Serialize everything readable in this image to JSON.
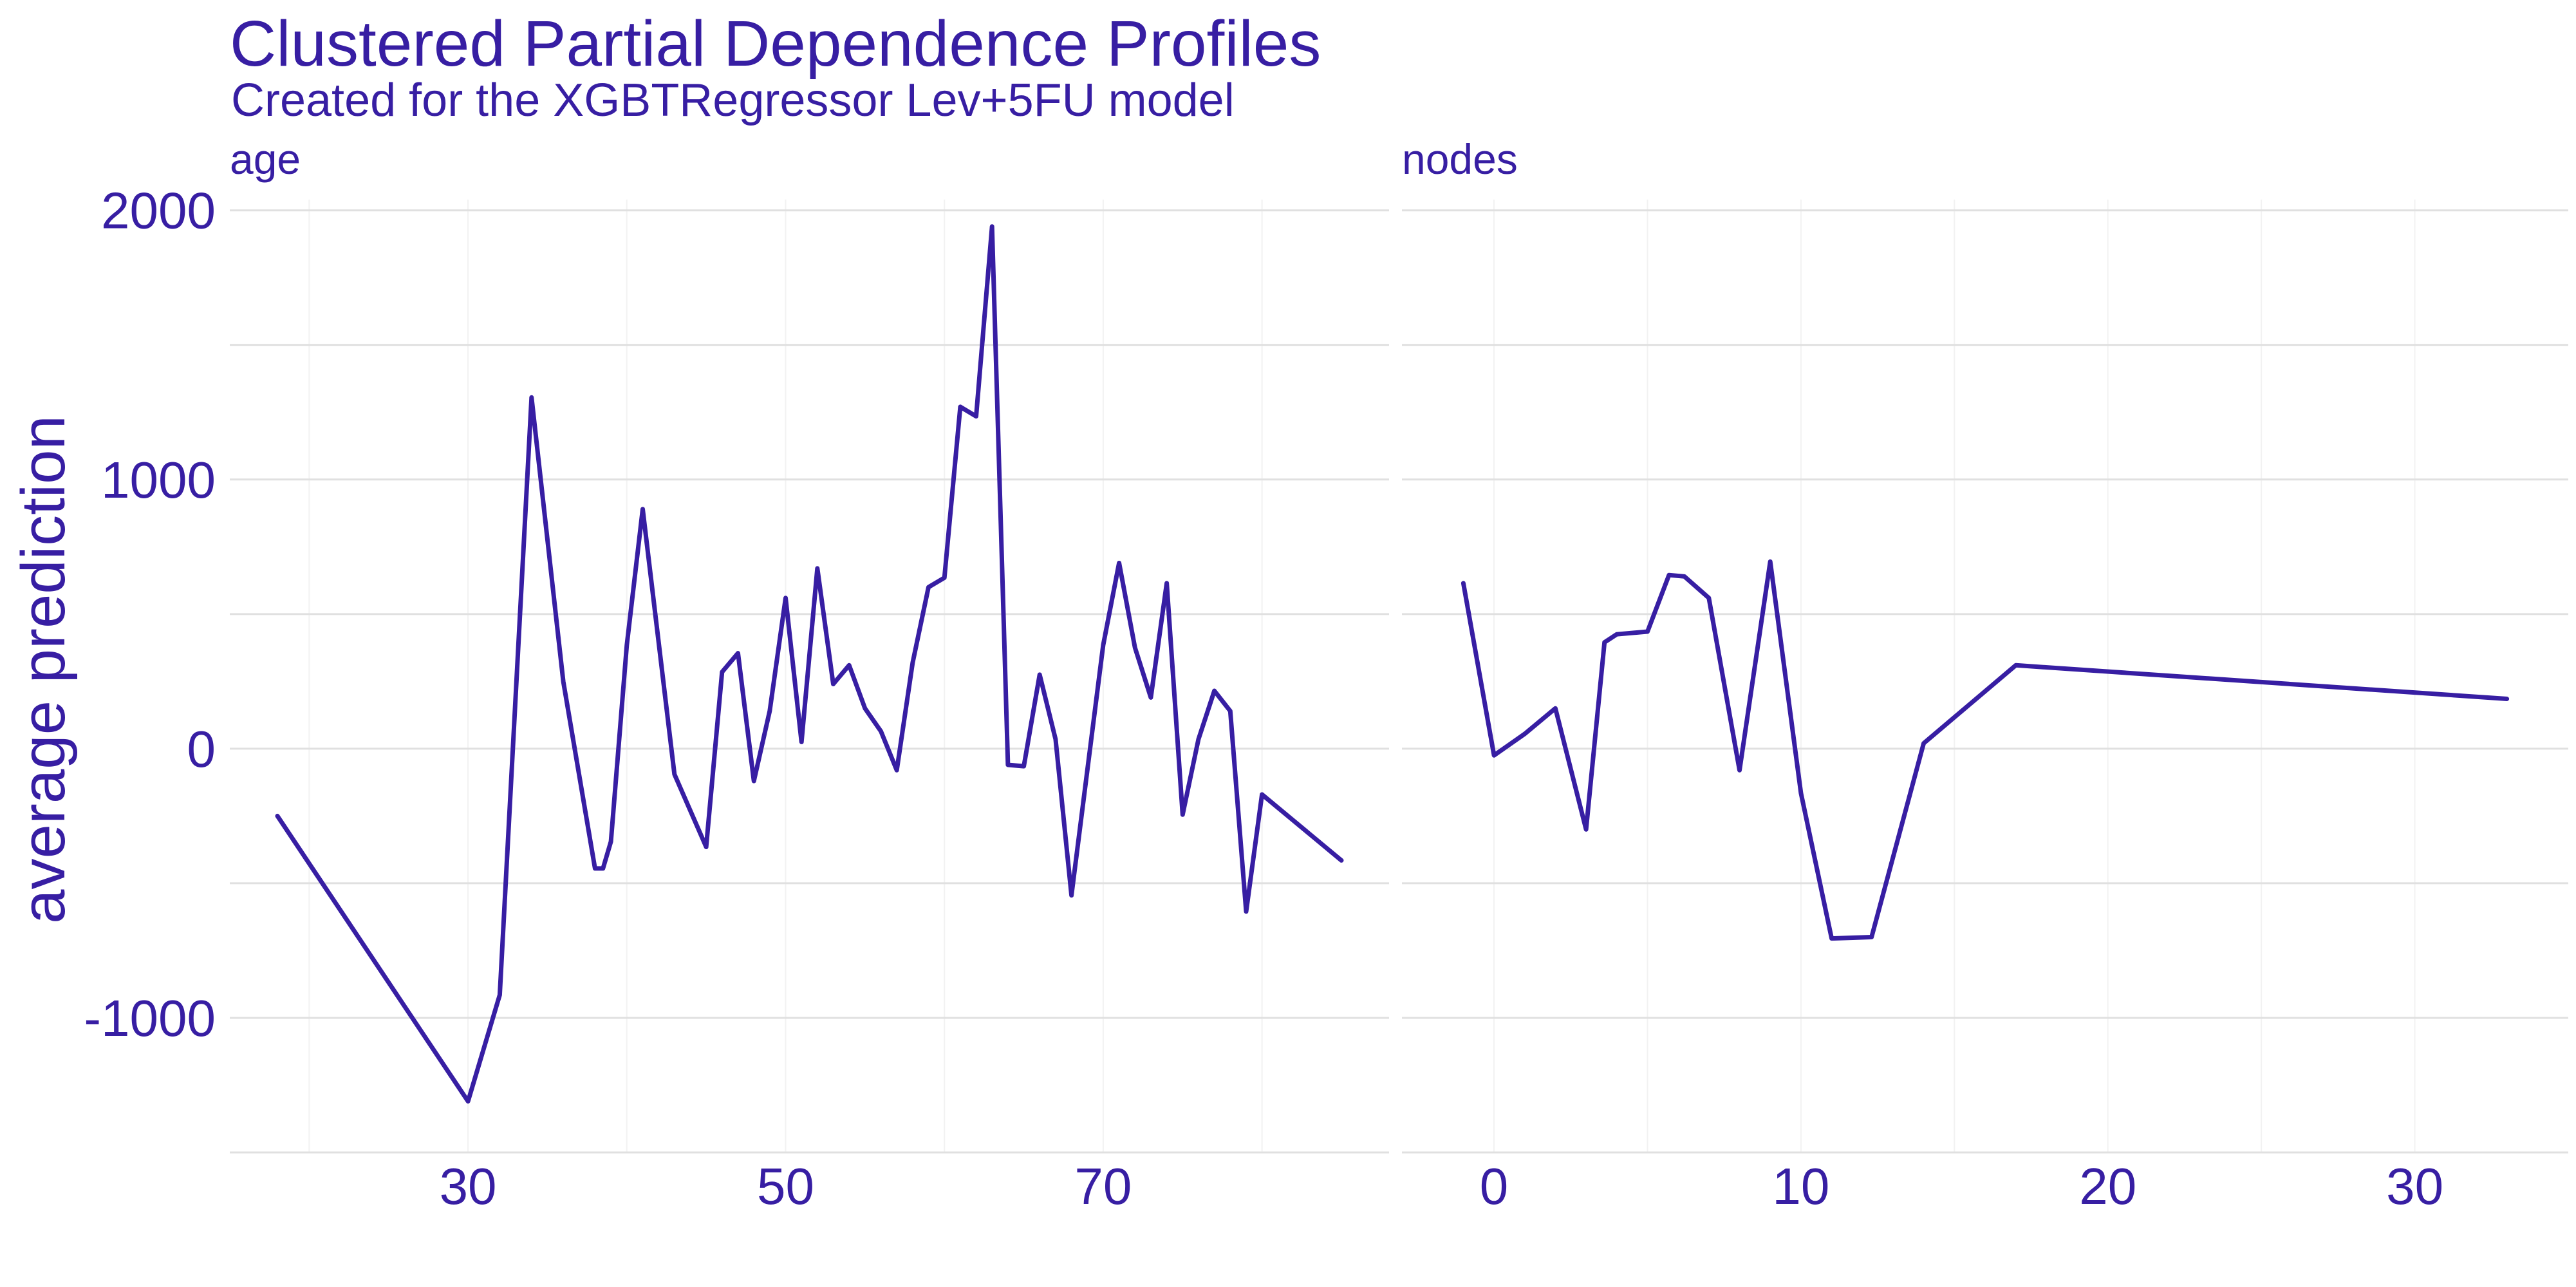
{
  "chart_data": {
    "type": "line",
    "title": "Clustered Partial Dependence Profiles",
    "subtitle": "Created for the XGBTRegressor Lev+5FU model",
    "ylabel": "average prediction",
    "line_color": "#371ea3",
    "grid": true,
    "y_ticks": [
      -1000,
      0,
      1000,
      2000
    ],
    "y_tick_labels": [
      "-1000",
      "0",
      "1000",
      "2000"
    ],
    "ylim": [
      -1500,
      2040
    ],
    "panels": [
      {
        "title": "age",
        "xlim": [
          15,
          88
        ],
        "x_ticks": [
          30,
          50,
          70
        ],
        "x_tick_labels": [
          "30",
          "50",
          "70"
        ],
        "x_minor_ticks": [
          20,
          40,
          60,
          80
        ],
        "series": [
          {
            "x": [
              18,
              30,
              32,
              34,
              36,
              38,
              38.5,
              39,
              40,
              41,
              43,
              45,
              46,
              47,
              48,
              49,
              50,
              51,
              52,
              53,
              54,
              55,
              56,
              57,
              58,
              59,
              60,
              61,
              62,
              63,
              64,
              65,
              66,
              67,
              68,
              70,
              71,
              72,
              73,
              74,
              75,
              76,
              77,
              78,
              79,
              80,
              85
            ],
            "y": [
              -250,
              -1310,
              -915,
              1305,
              250,
              -445,
              -445,
              -345,
              385,
              890,
              -95,
              -365,
              285,
              355,
              -120,
              140,
              560,
              25,
              670,
              240,
              310,
              150,
              65,
              -80,
              320,
              600,
              635,
              1270,
              1235,
              1940,
              -60,
              -65,
              275,
              35,
              -545,
              385,
              690,
              375,
              190,
              615,
              -245,
              35,
              215,
              140,
              -605,
              -170,
              -415
            ]
          }
        ]
      },
      {
        "title": "nodes",
        "xlim": [
          -3,
          35
        ],
        "x_ticks": [
          0,
          10,
          20,
          30
        ],
        "x_tick_labels": [
          "0",
          "10",
          "20",
          "30"
        ],
        "x_minor_ticks": [
          5,
          15,
          25
        ],
        "series": [
          {
            "x": [
              -1,
              0,
              1,
              2,
              3,
              3.6,
              4,
              5,
              5.7,
              6.2,
              7,
              8,
              9,
              10,
              11,
              12.3,
              14,
              17,
              33
            ],
            "y": [
              615,
              -25,
              55,
              150,
              -300,
              395,
              425,
              435,
              645,
              640,
              560,
              -80,
              695,
              -165,
              -705,
              -700,
              20,
              310,
              185
            ]
          }
        ]
      }
    ]
  }
}
